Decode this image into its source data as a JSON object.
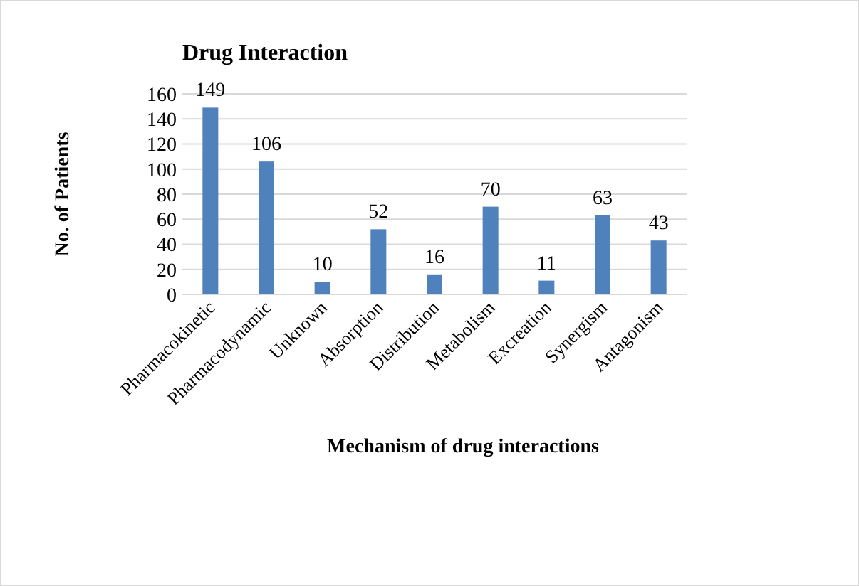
{
  "chart_data": {
    "type": "bar",
    "title": "Drug Interaction",
    "xlabel": "Mechanism of drug interactions",
    "ylabel": "No. of Patients",
    "categories": [
      "Pharmacokinetic",
      "Pharmacodynamic",
      "Unknown",
      "Absorption",
      "Distribution",
      "Metabolism",
      "Excreation",
      "Synergism",
      "Antagonism"
    ],
    "values": [
      149,
      106,
      10,
      52,
      16,
      70,
      11,
      63,
      43
    ],
    "color": "#4f81bd",
    "ylim": [
      0,
      160
    ],
    "yticks": [
      0,
      20,
      40,
      60,
      80,
      100,
      120,
      140,
      160
    ],
    "grid": "y",
    "data_labels": true
  }
}
